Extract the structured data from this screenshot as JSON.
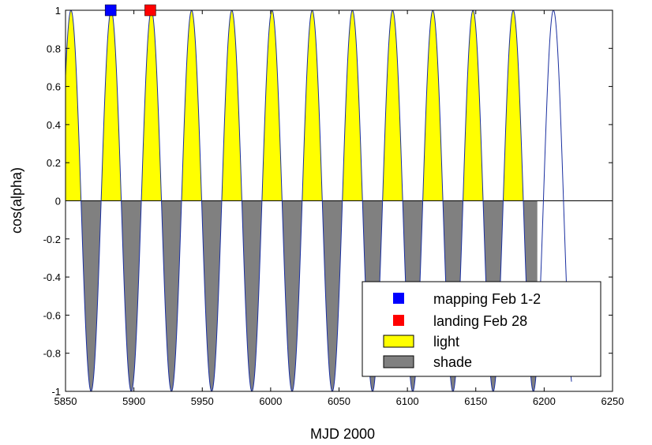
{
  "chart_data": {
    "type": "area",
    "title": "",
    "xlabel": "MJD 2000",
    "ylabel": "cos(alpha)",
    "xlim": [
      5850,
      6250
    ],
    "ylim": [
      -1,
      1
    ],
    "x_ticks": [
      5850,
      5900,
      5950,
      6000,
      6050,
      6100,
      6150,
      6200,
      6250
    ],
    "y_ticks": [
      1,
      0.8,
      0.6,
      0.4,
      0.2,
      0,
      -0.2,
      -0.4,
      -0.6,
      -0.8,
      -1
    ],
    "grid": false,
    "curve": {
      "name": "cos(alpha)",
      "color": "#1a2fa0",
      "form": "cosine",
      "amplitude": 1,
      "period_days": 29.4,
      "first_peak_mjd": 5854,
      "x_range": [
        5850,
        6220
      ]
    },
    "fill_end_mjd": 6195,
    "series": [
      {
        "name": "light",
        "color": "#ffff00",
        "fill": "positive"
      },
      {
        "name": "shade",
        "color": "#808080",
        "fill": "negative"
      }
    ],
    "markers": [
      {
        "name": "mapping Feb 1-2",
        "x": 5883,
        "y": 1,
        "color": "#0000ff"
      },
      {
        "name": "landing Feb 28",
        "x": 5912,
        "y": 1,
        "color": "#ff0000"
      }
    ],
    "legend": {
      "placement": "lower-right",
      "entries": [
        {
          "label": "mapping Feb 1-2",
          "kind": "marker",
          "color": "#0000ff"
        },
        {
          "label": "landing Feb 28",
          "kind": "marker",
          "color": "#ff0000"
        },
        {
          "label": "light",
          "kind": "patch",
          "color": "#ffff00"
        },
        {
          "label": "shade",
          "kind": "patch",
          "color": "#808080"
        }
      ]
    }
  }
}
